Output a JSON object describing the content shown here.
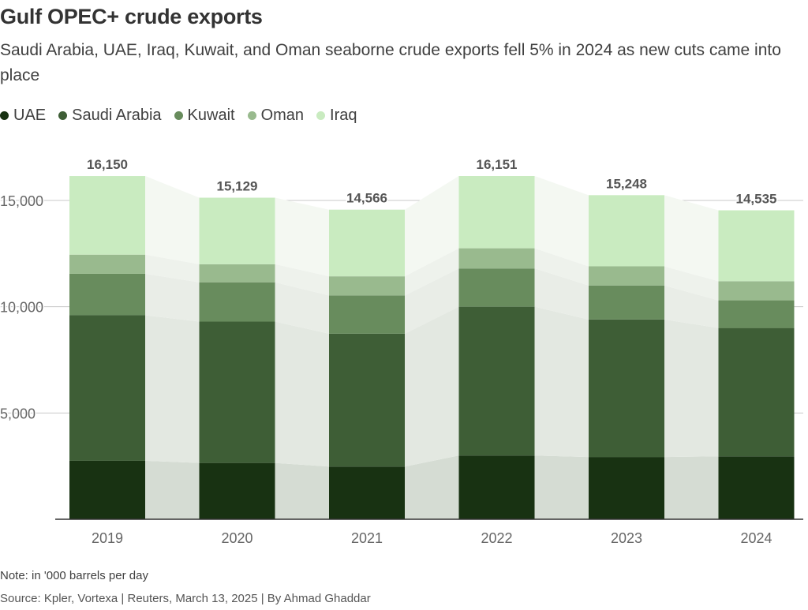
{
  "title": "Gulf OPEC+ crude exports",
  "subtitle": "Saudi Arabia, UAE, Iraq, Kuwait, and Oman seaborne crude exports fell 5% in 2024 as new cuts came into place",
  "note": "Note: in '000 barrels per day",
  "source": "Source: Kpler, Vortexa | Reuters, March 13, 2025 | By Ahmad Ghaddar",
  "legend": [
    {
      "label": "UAE",
      "color": "#183212"
    },
    {
      "label": "Saudi Arabia",
      "color": "#3e5e36"
    },
    {
      "label": "Kuwait",
      "color": "#688c5d"
    },
    {
      "label": "Oman",
      "color": "#99ba8e"
    },
    {
      "label": "Iraq",
      "color": "#c9ebc0"
    }
  ],
  "chart_data": {
    "type": "bar",
    "stacked": true,
    "categories": [
      "2019",
      "2020",
      "2021",
      "2022",
      "2023",
      "2024"
    ],
    "series": [
      {
        "name": "UAE",
        "color": "#183212",
        "values": [
          2750,
          2650,
          2480,
          3000,
          2930,
          2960
        ]
      },
      {
        "name": "Saudi Arabia",
        "color": "#3e5e36",
        "values": [
          6850,
          6650,
          6250,
          7000,
          6470,
          6040
        ]
      },
      {
        "name": "Kuwait",
        "color": "#688c5d",
        "values": [
          1950,
          1850,
          1800,
          1800,
          1600,
          1300
        ]
      },
      {
        "name": "Oman",
        "color": "#99ba8e",
        "values": [
          900,
          850,
          900,
          950,
          900,
          900
        ]
      },
      {
        "name": "Iraq",
        "color": "#c9ebc0",
        "values": [
          3700,
          3129,
          3136,
          3401,
          3348,
          3335
        ]
      }
    ],
    "totals": [
      16150,
      15129,
      14566,
      16151,
      15248,
      14535
    ],
    "total_labels": [
      "16,150",
      "15,129",
      "14,566",
      "16,151",
      "15,248",
      "14,535"
    ],
    "yticks": [
      5000,
      10000,
      15000
    ],
    "ytick_labels": [
      "5,000",
      "10,000",
      "15,000"
    ],
    "ylim": [
      0,
      17000
    ],
    "grid": true,
    "legend_position": "top-left"
  }
}
